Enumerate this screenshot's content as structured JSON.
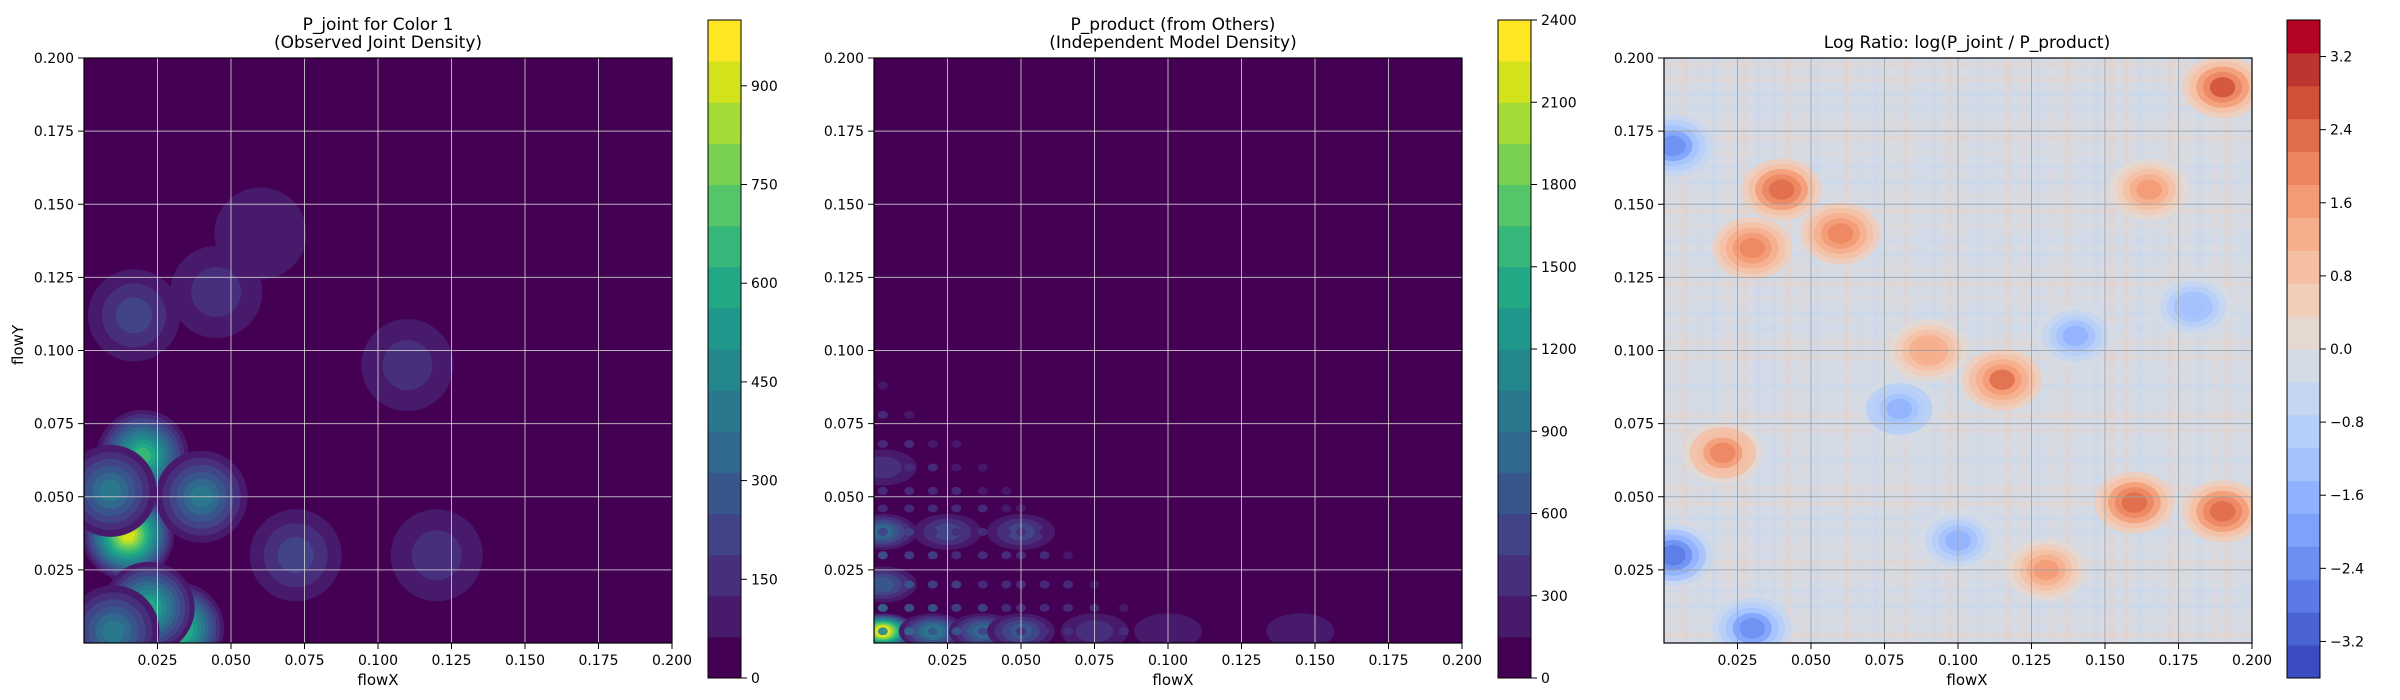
{
  "chart_data": [
    {
      "type": "heatmap",
      "title": "P_joint for Color 1\n(Observed Joint Density)",
      "xlabel": "flowX",
      "ylabel": "flowY",
      "xlim": [
        0.0,
        0.2
      ],
      "ylim": [
        0.0,
        0.2
      ],
      "xticks": [
        "0.025",
        "0.050",
        "0.075",
        "0.100",
        "0.125",
        "0.150",
        "0.175",
        "0.200"
      ],
      "yticks": [
        "0.025",
        "0.050",
        "0.075",
        "0.100",
        "0.125",
        "0.150",
        "0.175",
        "0.200"
      ],
      "grid": true,
      "colormap": "viridis",
      "colorbar": {
        "min": 0,
        "max": 1000,
        "ticks": [
          "0",
          "150",
          "300",
          "450",
          "600",
          "750",
          "900"
        ]
      },
      "peaks": [
        {
          "x": 0.015,
          "y": 0.037,
          "value": 850
        },
        {
          "x": 0.02,
          "y": 0.064,
          "value": 650
        },
        {
          "x": 0.032,
          "y": 0.005,
          "value": 700
        },
        {
          "x": 0.022,
          "y": 0.012,
          "value": 550
        },
        {
          "x": 0.01,
          "y": 0.004,
          "value": 400
        },
        {
          "x": 0.04,
          "y": 0.05,
          "value": 380
        },
        {
          "x": 0.009,
          "y": 0.052,
          "value": 350
        },
        {
          "x": 0.017,
          "y": 0.112,
          "value": 200
        },
        {
          "x": 0.072,
          "y": 0.03,
          "value": 180
        },
        {
          "x": 0.11,
          "y": 0.095,
          "value": 120
        },
        {
          "x": 0.045,
          "y": 0.12,
          "value": 110
        },
        {
          "x": 0.12,
          "y": 0.03,
          "value": 100
        },
        {
          "x": 0.06,
          "y": 0.14,
          "value": 90
        }
      ]
    },
    {
      "type": "heatmap",
      "title": "P_product (from Others)\n(Independent Model Density)",
      "xlabel": "flowX",
      "ylabel": "",
      "xlim": [
        0.0,
        0.2
      ],
      "ylim": [
        0.0,
        0.2
      ],
      "xticks": [
        "0.025",
        "0.050",
        "0.075",
        "0.100",
        "0.125",
        "0.150",
        "0.175",
        "0.200"
      ],
      "yticks": [
        "0.025",
        "0.050",
        "0.075",
        "0.100",
        "0.125",
        "0.150",
        "0.175",
        "0.200"
      ],
      "grid": true,
      "colormap": "viridis",
      "colorbar": {
        "min": 0,
        "max": 2400,
        "ticks": [
          "0",
          "300",
          "600",
          "900",
          "1200",
          "1500",
          "1800",
          "2100",
          "2400"
        ]
      },
      "peaks": [
        {
          "x": 0.003,
          "y": 0.004,
          "value": 2300
        },
        {
          "x": 0.02,
          "y": 0.004,
          "value": 900
        },
        {
          "x": 0.037,
          "y": 0.004,
          "value": 800
        },
        {
          "x": 0.05,
          "y": 0.004,
          "value": 650
        },
        {
          "x": 0.003,
          "y": 0.038,
          "value": 700
        },
        {
          "x": 0.003,
          "y": 0.02,
          "value": 600
        },
        {
          "x": 0.025,
          "y": 0.038,
          "value": 450
        },
        {
          "x": 0.05,
          "y": 0.038,
          "value": 400
        },
        {
          "x": 0.003,
          "y": 0.06,
          "value": 350
        },
        {
          "x": 0.075,
          "y": 0.004,
          "value": 300
        },
        {
          "x": 0.1,
          "y": 0.004,
          "value": 200
        },
        {
          "x": 0.145,
          "y": 0.004,
          "value": 150
        }
      ]
    },
    {
      "type": "heatmap",
      "title": "Log Ratio: log(P_joint / P_product)",
      "xlabel": "flowX",
      "ylabel": "",
      "xlim": [
        0.0,
        0.2
      ],
      "ylim": [
        0.0,
        0.2
      ],
      "xticks": [
        "0.025",
        "0.050",
        "0.075",
        "0.100",
        "0.125",
        "0.150",
        "0.175",
        "0.200"
      ],
      "yticks": [
        "0.025",
        "0.050",
        "0.075",
        "0.100",
        "0.125",
        "0.150",
        "0.175",
        "0.200"
      ],
      "grid": true,
      "colormap": "coolwarm",
      "colorbar": {
        "min": -3.6,
        "max": 3.6,
        "ticks": [
          "−3.2",
          "−2.4",
          "−1.6",
          "−0.8",
          "0.0",
          "0.8",
          "1.6",
          "2.4",
          "3.2"
        ]
      },
      "hot_regions": [
        {
          "x": 0.04,
          "y": 0.155,
          "value": 2.4
        },
        {
          "x": 0.03,
          "y": 0.135,
          "value": 2.0
        },
        {
          "x": 0.06,
          "y": 0.14,
          "value": 2.0
        },
        {
          "x": 0.115,
          "y": 0.09,
          "value": 2.2
        },
        {
          "x": 0.16,
          "y": 0.048,
          "value": 2.4
        },
        {
          "x": 0.19,
          "y": 0.045,
          "value": 2.4
        },
        {
          "x": 0.19,
          "y": 0.19,
          "value": 2.6
        },
        {
          "x": 0.165,
          "y": 0.155,
          "value": 1.6
        },
        {
          "x": 0.02,
          "y": 0.065,
          "value": 1.8
        },
        {
          "x": 0.13,
          "y": 0.025,
          "value": 1.6
        },
        {
          "x": 0.09,
          "y": 0.1,
          "value": 1.4
        }
      ],
      "cold_regions": [
        {
          "x": 0.003,
          "y": 0.03,
          "value": -2.8
        },
        {
          "x": 0.003,
          "y": 0.17,
          "value": -2.4
        },
        {
          "x": 0.03,
          "y": 0.005,
          "value": -2.4
        },
        {
          "x": 0.08,
          "y": 0.08,
          "value": -1.8
        },
        {
          "x": 0.14,
          "y": 0.105,
          "value": -1.6
        },
        {
          "x": 0.18,
          "y": 0.115,
          "value": -1.4
        },
        {
          "x": 0.1,
          "y": 0.035,
          "value": -1.6
        }
      ]
    }
  ]
}
